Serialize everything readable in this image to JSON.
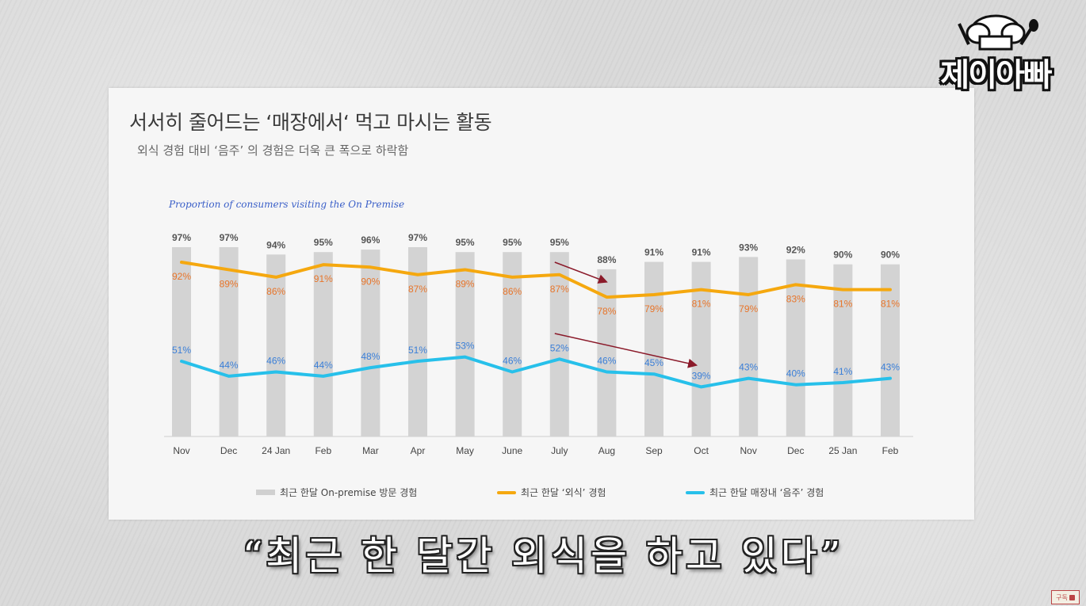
{
  "slide": {
    "title": "서서히 줄어드는 ‘매장에서‘ 먹고 마시는 활동",
    "subtitle": "외식 경험 대비 ‘음주’ 의 경험은 더욱 큰 폭으로 하락함",
    "chart_caption": "Proportion of consumers visiting the On Premise"
  },
  "legend": {
    "bar": "최근 한달 On-premise 방문 경험",
    "orange": "최근 한달 ‘외식’ 경험",
    "blue": "최근 한달 매장내 ‘음주’ 경험"
  },
  "colors": {
    "bar": "#d3d3d3",
    "orange_line": "#f5a80f",
    "orange_label": "#e8752a",
    "blue_line": "#27c0ea",
    "blue_label": "#3a7fd8",
    "bar_label": "#555555",
    "arrow": "#8b1a2a"
  },
  "chart_data": {
    "type": "bar",
    "categories": [
      "Nov",
      "Dec",
      "24 Jan",
      "Feb",
      "Mar",
      "Apr",
      "May",
      "June",
      "July",
      "Aug",
      "Sep",
      "Oct",
      "Nov",
      "Dec",
      "25 Jan",
      "Feb"
    ],
    "series": [
      {
        "name": "최근 한달 On-premise 방문 경험",
        "type": "bar",
        "values": [
          97,
          97,
          94,
          95,
          96,
          97,
          95,
          95,
          95,
          88,
          91,
          91,
          93,
          92,
          90,
          90
        ]
      },
      {
        "name": "최근 한달 ‘외식’ 경험",
        "type": "line",
        "values": [
          92,
          89,
          86,
          91,
          90,
          87,
          89,
          86,
          87,
          78,
          79,
          81,
          79,
          83,
          81,
          81
        ]
      },
      {
        "name": "최근 한달 매장내 ‘음주’ 경험",
        "type": "line",
        "values": [
          51,
          44,
          46,
          44,
          48,
          51,
          53,
          46,
          52,
          46,
          45,
          39,
          43,
          40,
          41,
          43
        ]
      }
    ],
    "value_suffix": "%",
    "ylim": [
      0,
      100
    ],
    "grid": false,
    "legend_position": "bottom"
  },
  "logo_text": "제이아빠",
  "caption": "“최근 한 달간 외식을 하고 있다”",
  "subscribe_label": "구독"
}
